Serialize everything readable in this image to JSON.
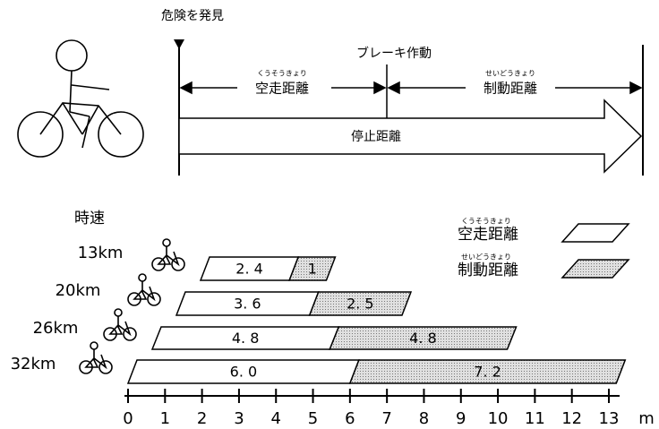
{
  "diagram": {
    "discover": "危険を発見",
    "brake": "ブレーキ作動",
    "free_run": "空走距離",
    "free_run_furigana": "くうそうきょり",
    "braking": "制動距離",
    "braking_furigana": "せいどうきょり",
    "stopping": "停止距離"
  },
  "chart_data": {
    "type": "bar",
    "orientation": "horizontal",
    "stacked": true,
    "ylabel": "時速",
    "xlabel": "m",
    "categories": [
      "13km",
      "20km",
      "26km",
      "32km"
    ],
    "series": [
      {
        "name": "空走距離",
        "furigana": "くうそうきょり",
        "color": "#ffffff",
        "values": [
          2.4,
          3.6,
          4.8,
          6.0
        ],
        "value_labels": [
          "2. 4",
          "3. 6",
          "4. 8",
          "6. 0"
        ]
      },
      {
        "name": "制動距離",
        "furigana": "せいどうきょり",
        "color": "#c8c8c8",
        "values": [
          1,
          2.5,
          4.8,
          7.2
        ],
        "value_labels": [
          "1",
          "2. 5",
          "4. 8",
          "7. 2"
        ]
      }
    ],
    "xlim": [
      0,
      13
    ],
    "xticks": [
      0,
      1,
      2,
      3,
      4,
      5,
      6,
      7,
      8,
      9,
      10,
      11,
      12,
      13
    ]
  }
}
